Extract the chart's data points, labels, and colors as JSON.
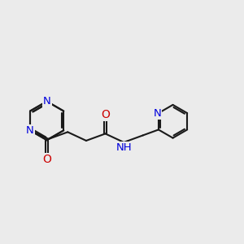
{
  "bg_color": "#ebebeb",
  "bond_color": "#1a1a1a",
  "bond_width": 1.5,
  "atom_colors": {
    "N": "#0000dd",
    "O": "#cc0000",
    "C": "#1a1a1a"
  }
}
